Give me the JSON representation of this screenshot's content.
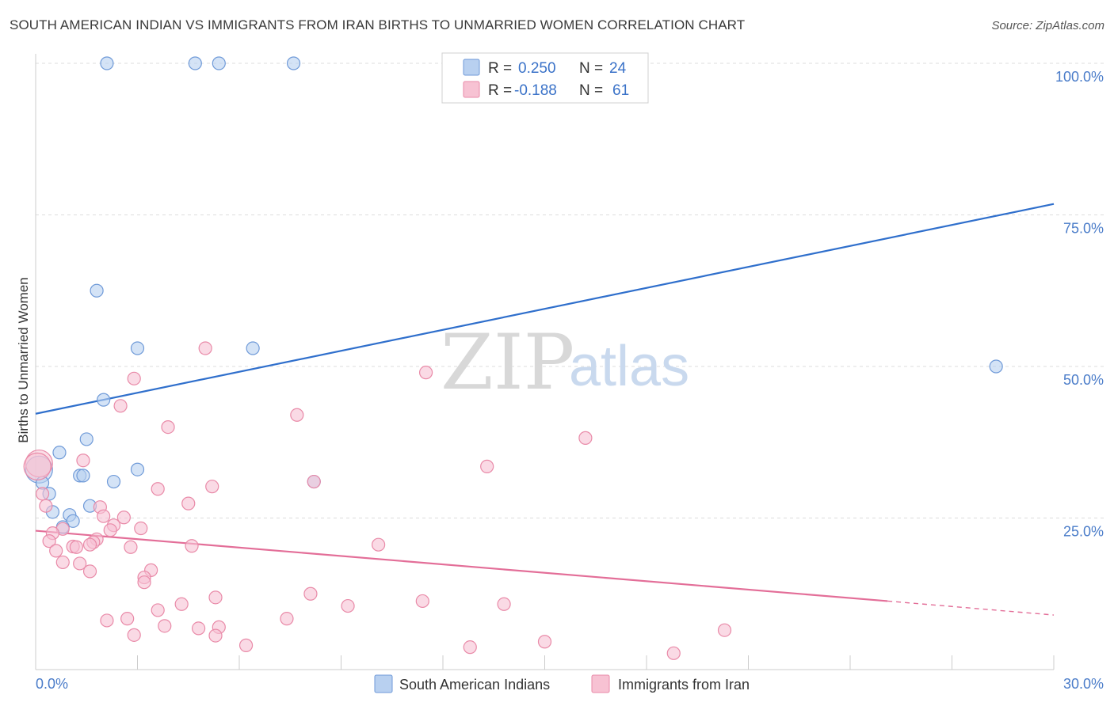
{
  "title": "SOUTH AMERICAN INDIAN VS IMMIGRANTS FROM IRAN BIRTHS TO UNMARRIED WOMEN CORRELATION CHART",
  "source": "Source: ZipAtlas.com",
  "watermark": {
    "zip": "ZIP",
    "atlas": "atlas"
  },
  "colors": {
    "blue_fill": "#b8d0f0",
    "blue_stroke": "#6f9ad8",
    "blue_line": "#2f6fcc",
    "pink_fill": "#f7c2d3",
    "pink_stroke": "#e98aa8",
    "pink_line": "#e36e98",
    "tick_text": "#4a7cc9",
    "grid": "#dddddd"
  },
  "legend": {
    "rows": [
      {
        "r_label": "R =",
        "r_value": "0.250",
        "n_label": "N =",
        "n_value": "24"
      },
      {
        "r_label": "R =",
        "r_value": "-0.188",
        "n_label": "N =",
        "n_value": "61"
      }
    ]
  },
  "chart_data": {
    "type": "scatter",
    "title": "SOUTH AMERICAN INDIAN VS IMMIGRANTS FROM IRAN BIRTHS TO UNMARRIED WOMEN CORRELATION CHART",
    "xlabel": "",
    "ylabel": "Births to Unmarried Women",
    "xlim": [
      0,
      30
    ],
    "ylim": [
      0,
      100
    ],
    "x_tick_labels": [
      "0.0%",
      "30.0%"
    ],
    "y_ticks": [
      25,
      50,
      75,
      100
    ],
    "y_tick_labels": [
      "25.0%",
      "50.0%",
      "75.0%",
      "100.0%"
    ],
    "grid": true,
    "legend_position": "top-center",
    "series": [
      {
        "name": "South American Indians",
        "color": "#b8d0f0",
        "trend": {
          "x": [
            0,
            30
          ],
          "y": [
            42.2,
            76.8
          ],
          "dashed_from": null
        },
        "points": [
          {
            "x": 2.1,
            "y": 100
          },
          {
            "x": 4.7,
            "y": 100
          },
          {
            "x": 5.4,
            "y": 100
          },
          {
            "x": 7.6,
            "y": 100
          },
          {
            "x": 1.8,
            "y": 62.5
          },
          {
            "x": 3.0,
            "y": 53
          },
          {
            "x": 6.4,
            "y": 53
          },
          {
            "x": 28.3,
            "y": 50
          },
          {
            "x": 2.0,
            "y": 44.5
          },
          {
            "x": 1.5,
            "y": 38
          },
          {
            "x": 0.7,
            "y": 35.8
          },
          {
            "x": 1.3,
            "y": 32
          },
          {
            "x": 1.4,
            "y": 32
          },
          {
            "x": 3.0,
            "y": 33
          },
          {
            "x": 0.1,
            "y": 33
          },
          {
            "x": 2.3,
            "y": 31
          },
          {
            "x": 8.2,
            "y": 31
          },
          {
            "x": 0.2,
            "y": 30.8
          },
          {
            "x": 0.4,
            "y": 29
          },
          {
            "x": 1.6,
            "y": 27
          },
          {
            "x": 0.5,
            "y": 26
          },
          {
            "x": 1.0,
            "y": 25.5
          },
          {
            "x": 1.1,
            "y": 24.5
          },
          {
            "x": 0.8,
            "y": 23.5
          }
        ]
      },
      {
        "name": "Immigrants from Iran",
        "color": "#f7c2d3",
        "trend": {
          "x": [
            0,
            25.1,
            30
          ],
          "y": [
            22.9,
            11.3,
            9.0
          ],
          "dashed_from": 25.1
        },
        "points": [
          {
            "x": 5.0,
            "y": 53
          },
          {
            "x": 11.5,
            "y": 49
          },
          {
            "x": 2.9,
            "y": 48
          },
          {
            "x": 2.5,
            "y": 43.5
          },
          {
            "x": 7.7,
            "y": 42
          },
          {
            "x": 3.9,
            "y": 40
          },
          {
            "x": 16.2,
            "y": 38.2
          },
          {
            "x": 0.1,
            "y": 34
          },
          {
            "x": 1.4,
            "y": 34.5
          },
          {
            "x": 13.3,
            "y": 33.5
          },
          {
            "x": 8.2,
            "y": 31
          },
          {
            "x": 5.2,
            "y": 30.2
          },
          {
            "x": 3.6,
            "y": 29.8
          },
          {
            "x": 0.2,
            "y": 29
          },
          {
            "x": 4.5,
            "y": 27.4
          },
          {
            "x": 0.3,
            "y": 27
          },
          {
            "x": 1.9,
            "y": 26.8
          },
          {
            "x": 2.0,
            "y": 25.3
          },
          {
            "x": 2.6,
            "y": 25.1
          },
          {
            "x": 2.3,
            "y": 23.8
          },
          {
            "x": 0.8,
            "y": 23.2
          },
          {
            "x": 3.1,
            "y": 23.3
          },
          {
            "x": 2.2,
            "y": 23
          },
          {
            "x": 0.5,
            "y": 22.5
          },
          {
            "x": 0.4,
            "y": 21.2
          },
          {
            "x": 1.8,
            "y": 21.5
          },
          {
            "x": 1.7,
            "y": 21
          },
          {
            "x": 1.6,
            "y": 20.6
          },
          {
            "x": 1.1,
            "y": 20.3
          },
          {
            "x": 1.2,
            "y": 20.2
          },
          {
            "x": 2.8,
            "y": 20.2
          },
          {
            "x": 4.6,
            "y": 20.4
          },
          {
            "x": 10.1,
            "y": 20.6
          },
          {
            "x": 0.6,
            "y": 19.6
          },
          {
            "x": 0.8,
            "y": 17.7
          },
          {
            "x": 1.3,
            "y": 17.5
          },
          {
            "x": 1.6,
            "y": 16.2
          },
          {
            "x": 3.4,
            "y": 16.4
          },
          {
            "x": 3.2,
            "y": 15.2
          },
          {
            "x": 3.2,
            "y": 14.4
          },
          {
            "x": 8.1,
            "y": 12.5
          },
          {
            "x": 5.3,
            "y": 11.9
          },
          {
            "x": 11.4,
            "y": 11.3
          },
          {
            "x": 13.8,
            "y": 10.8
          },
          {
            "x": 4.3,
            "y": 10.8
          },
          {
            "x": 9.2,
            "y": 10.5
          },
          {
            "x": 3.6,
            "y": 9.8
          },
          {
            "x": 2.7,
            "y": 8.4
          },
          {
            "x": 7.4,
            "y": 8.4
          },
          {
            "x": 2.1,
            "y": 8.1
          },
          {
            "x": 3.8,
            "y": 7.2
          },
          {
            "x": 5.4,
            "y": 7
          },
          {
            "x": 4.8,
            "y": 6.8
          },
          {
            "x": 20.3,
            "y": 6.5
          },
          {
            "x": 2.9,
            "y": 5.7
          },
          {
            "x": 5.3,
            "y": 5.6
          },
          {
            "x": 15.0,
            "y": 4.6
          },
          {
            "x": 6.2,
            "y": 4
          },
          {
            "x": 12.8,
            "y": 3.7
          },
          {
            "x": 18.8,
            "y": 2.7
          },
          {
            "x": 0.05,
            "y": 33.5
          }
        ]
      }
    ]
  }
}
